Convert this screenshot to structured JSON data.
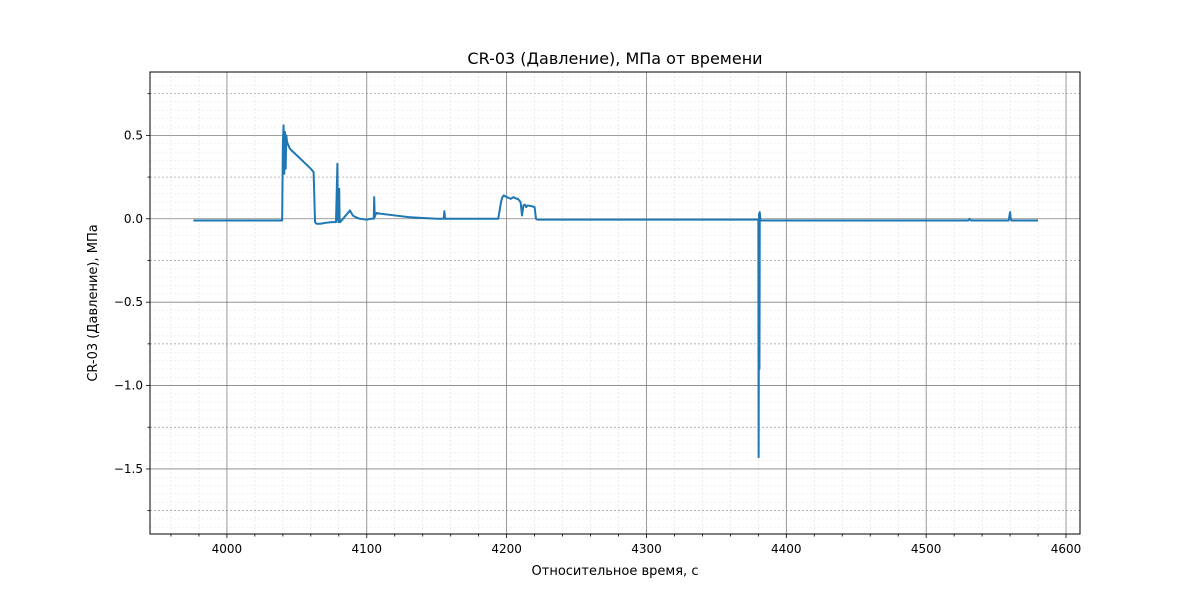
{
  "chart_data": {
    "type": "line",
    "title": "CR-03 (Давление), МПа от времени",
    "xlabel": "Относительное время, с",
    "ylabel": "CR-03 (Давление), МПа",
    "xlim": [
      3945,
      4610
    ],
    "ylim": [
      -1.89,
      0.88
    ],
    "x_ticks": [
      4000,
      4100,
      4200,
      4300,
      4400,
      4500,
      4600
    ],
    "x_tick_labels": [
      "4000",
      "4100",
      "4200",
      "4300",
      "4400",
      "4500",
      "4600"
    ],
    "y_ticks": [
      0.5,
      0.0,
      -0.5,
      -1.0,
      -1.5
    ],
    "y_tick_labels": [
      "0.5",
      "0.0",
      "−0.5",
      "−1.0",
      "−1.5"
    ],
    "y_minor_dashed": [
      0.75,
      0.25,
      -0.25,
      -0.75,
      -1.25,
      -1.75
    ],
    "grid": true,
    "line_color": "#1f77b4",
    "series": [
      {
        "x": [
          3976,
          4039.5,
          4040,
          4040.5,
          4041,
          4041.5,
          4042,
          4042.5,
          4043,
          4045,
          4050,
          4055,
          4060,
          4062,
          4063,
          4064,
          4067,
          4070,
          4075,
          4078,
          4079,
          4079.3,
          4079.7,
          4080,
          4080.3,
          4080.6,
          4081,
          4082,
          4085,
          4087,
          4088,
          4090,
          4092,
          4095,
          4100,
          4103,
          4105,
          4105.3,
          4105.7,
          4106,
          4107,
          4110,
          4120,
          4130,
          4140,
          4150,
          4155,
          4155.5,
          4156,
          4157,
          4160,
          4170,
          4180,
          4190,
          4194,
          4196,
          4197,
          4198,
          4200,
          4203,
          4205,
          4207,
          4208,
          4210,
          4211,
          4212,
          4213,
          4214,
          4215,
          4218,
          4220,
          4221,
          4222,
          4225,
          4250,
          4300,
          4350,
          4375,
          4380,
          4380.2,
          4380.5,
          4380.8,
          4381,
          4381.5,
          4382,
          4390,
          4400,
          4450,
          4500,
          4530,
          4531,
          4532,
          4540,
          4559,
          4560,
          4560.5,
          4561,
          4570,
          4580
        ],
        "y": [
          -0.01,
          -0.01,
          0.45,
          0.56,
          0.27,
          0.52,
          0.3,
          0.5,
          0.46,
          0.42,
          0.38,
          0.34,
          0.3,
          0.28,
          -0.02,
          -0.03,
          -0.03,
          -0.025,
          -0.02,
          -0.02,
          0.33,
          0.01,
          -0.02,
          -0.01,
          0.18,
          -0.02,
          -0.02,
          -0.01,
          0.02,
          0.04,
          0.05,
          0.02,
          0.01,
          0.0,
          -0.005,
          0.0,
          0.0,
          0.13,
          0.01,
          0.02,
          0.035,
          0.03,
          0.02,
          0.01,
          0.005,
          0.0,
          0.0,
          0.045,
          0.0,
          0.0,
          0.0,
          0.0,
          0.0,
          0.0,
          0.0,
          0.1,
          0.13,
          0.14,
          0.13,
          0.12,
          0.13,
          0.12,
          0.12,
          0.1,
          0.02,
          0.08,
          0.085,
          0.07,
          0.08,
          0.075,
          0.07,
          0.0,
          -0.005,
          -0.005,
          -0.005,
          -0.005,
          -0.005,
          -0.005,
          -0.005,
          -1.43,
          0.03,
          -0.9,
          0.04,
          -0.01,
          -0.01,
          -0.01,
          -0.01,
          -0.01,
          -0.01,
          -0.01,
          0.0,
          -0.01,
          -0.01,
          -0.01,
          0.04,
          0.0,
          -0.01,
          -0.01,
          -0.01
        ]
      }
    ]
  }
}
